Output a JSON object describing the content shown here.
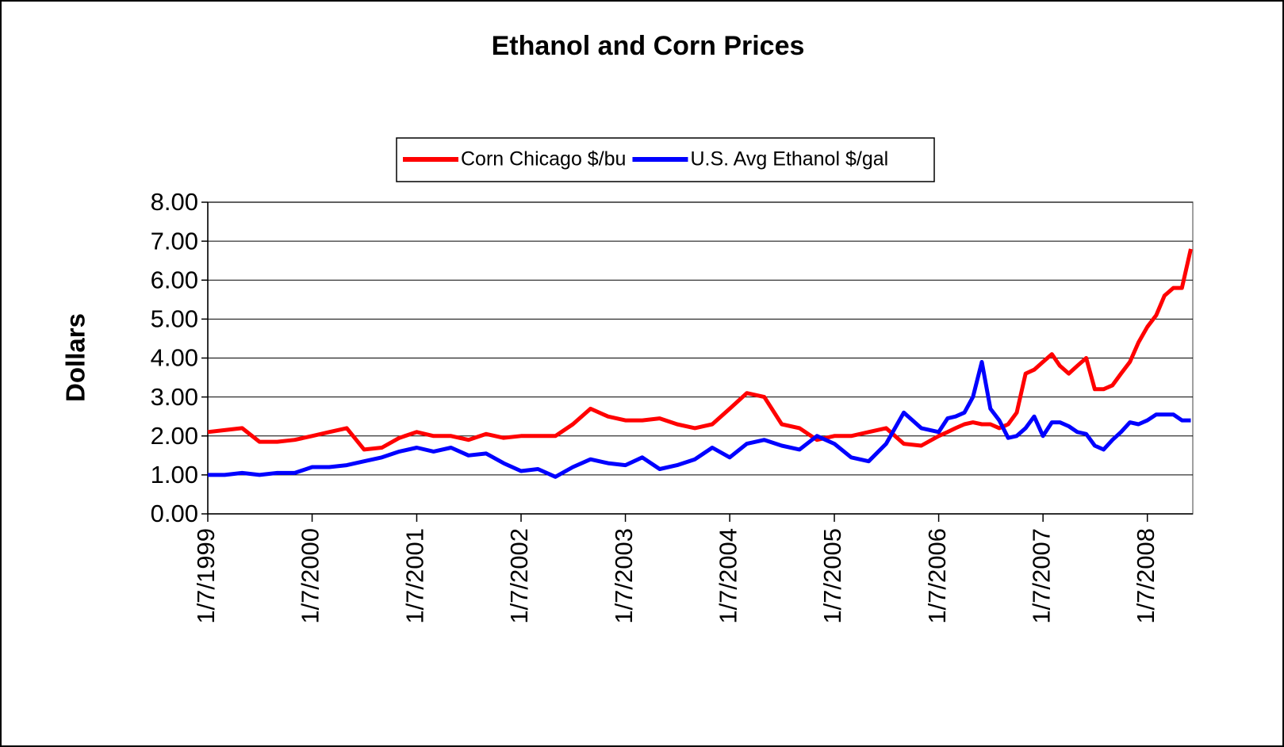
{
  "chart_data": {
    "type": "line",
    "title": "Ethanol and Corn Prices",
    "y_label": "Dollars",
    "x": [
      "1999-01-07",
      "1999-03-07",
      "1999-05-07",
      "1999-07-07",
      "1999-09-07",
      "1999-11-07",
      "2000-01-07",
      "2000-03-07",
      "2000-05-07",
      "2000-07-07",
      "2000-09-07",
      "2000-11-07",
      "2001-01-07",
      "2001-03-07",
      "2001-05-07",
      "2001-07-07",
      "2001-09-07",
      "2001-11-07",
      "2002-01-07",
      "2002-03-07",
      "2002-05-07",
      "2002-07-07",
      "2002-09-07",
      "2002-11-07",
      "2003-01-07",
      "2003-03-07",
      "2003-05-07",
      "2003-07-07",
      "2003-09-07",
      "2003-11-07",
      "2004-01-07",
      "2004-03-07",
      "2004-05-07",
      "2004-07-07",
      "2004-09-07",
      "2004-11-07",
      "2005-01-07",
      "2005-03-07",
      "2005-05-07",
      "2005-07-07",
      "2005-09-07",
      "2005-11-07",
      "2006-01-07",
      "2006-02-07",
      "2006-03-07",
      "2006-04-07",
      "2006-05-07",
      "2006-06-07",
      "2006-07-07",
      "2006-08-07",
      "2006-09-07",
      "2006-10-07",
      "2006-11-07",
      "2006-12-07",
      "2007-01-07",
      "2007-02-07",
      "2007-03-07",
      "2007-04-07",
      "2007-05-07",
      "2007-06-07",
      "2007-07-07",
      "2007-08-07",
      "2007-09-07",
      "2007-10-07",
      "2007-11-07",
      "2007-12-07",
      "2008-01-07",
      "2008-02-07",
      "2008-03-07",
      "2008-04-07",
      "2008-05-07",
      "2008-06-07"
    ],
    "series": [
      {
        "name": "Corn Chicago $/bu",
        "color": "#ff0000",
        "values": [
          2.1,
          2.15,
          2.2,
          1.85,
          1.85,
          1.9,
          2.0,
          2.1,
          2.2,
          1.65,
          1.7,
          1.95,
          2.1,
          2.0,
          2.0,
          1.9,
          2.05,
          1.95,
          2.0,
          2.0,
          2.0,
          2.3,
          2.7,
          2.5,
          2.4,
          2.4,
          2.45,
          2.3,
          2.2,
          2.3,
          2.7,
          3.1,
          3.0,
          2.3,
          2.2,
          1.9,
          2.0,
          2.0,
          2.1,
          2.2,
          1.8,
          1.75,
          2.0,
          2.1,
          2.2,
          2.3,
          2.35,
          2.3,
          2.3,
          2.2,
          2.3,
          2.6,
          3.6,
          3.7,
          3.9,
          4.1,
          3.8,
          3.6,
          3.8,
          4.0,
          3.2,
          3.2,
          3.3,
          3.6,
          3.9,
          4.4,
          4.8,
          5.1,
          5.6,
          5.8,
          5.8,
          6.8
        ]
      },
      {
        "name": "U.S. Avg Ethanol $/gal",
        "color": "#0000ff",
        "values": [
          1.0,
          1.0,
          1.05,
          1.0,
          1.05,
          1.05,
          1.2,
          1.2,
          1.25,
          1.35,
          1.45,
          1.6,
          1.7,
          1.6,
          1.7,
          1.5,
          1.55,
          1.3,
          1.1,
          1.15,
          0.95,
          1.2,
          1.4,
          1.3,
          1.25,
          1.45,
          1.15,
          1.25,
          1.4,
          1.7,
          1.45,
          1.8,
          1.9,
          1.75,
          1.65,
          2.0,
          1.8,
          1.45,
          1.35,
          1.8,
          2.6,
          2.2,
          2.1,
          2.45,
          2.5,
          2.6,
          3.0,
          3.9,
          2.7,
          2.4,
          1.95,
          2.0,
          2.2,
          2.5,
          2.0,
          2.35,
          2.35,
          2.25,
          2.1,
          2.05,
          1.75,
          1.65,
          1.9,
          2.1,
          2.35,
          2.3,
          2.4,
          2.55,
          2.55,
          2.55,
          2.4,
          2.4
        ]
      }
    ],
    "xlim": [
      "1999-01-07",
      "2008-06-14"
    ],
    "xticks": [
      {
        "value": "1999-01-07",
        "label": "1/7/1999"
      },
      {
        "value": "2000-01-07",
        "label": "1/7/2000"
      },
      {
        "value": "2001-01-07",
        "label": "1/7/2001"
      },
      {
        "value": "2002-01-07",
        "label": "1/7/2002"
      },
      {
        "value": "2003-01-07",
        "label": "1/7/2003"
      },
      {
        "value": "2004-01-07",
        "label": "1/7/2004"
      },
      {
        "value": "2005-01-07",
        "label": "1/7/2005"
      },
      {
        "value": "2006-01-07",
        "label": "1/7/2006"
      },
      {
        "value": "2007-01-07",
        "label": "1/7/2007"
      },
      {
        "value": "2008-01-07",
        "label": "1/7/2008"
      }
    ],
    "ylim": [
      0,
      8
    ],
    "yticks": [
      {
        "value": 0,
        "label": "0.00"
      },
      {
        "value": 1,
        "label": "1.00"
      },
      {
        "value": 2,
        "label": "2.00"
      },
      {
        "value": 3,
        "label": "3.00"
      },
      {
        "value": 4,
        "label": "4.00"
      },
      {
        "value": 5,
        "label": "5.00"
      },
      {
        "value": 6,
        "label": "6.00"
      },
      {
        "value": 7,
        "label": "7.00"
      },
      {
        "value": 8,
        "label": "8.00"
      }
    ],
    "grid": true,
    "legend": "top"
  }
}
